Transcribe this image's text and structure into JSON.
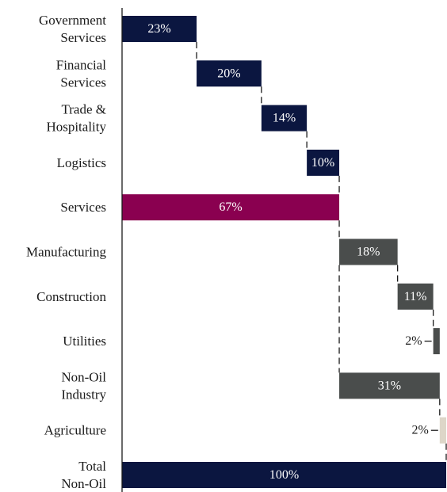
{
  "chart_data": {
    "type": "bar",
    "orientation": "horizontal-waterfall",
    "title": "",
    "xlabel": "",
    "ylabel": "",
    "xlim": [
      0,
      100
    ],
    "grid": false,
    "legend": "none",
    "bars": [
      {
        "label_lines": [
          "Government",
          "Services"
        ],
        "start": 0,
        "value": 23,
        "value_label": "23%",
        "color": "#0b1640",
        "text_color": "#ffffff",
        "label_position": "inside"
      },
      {
        "label_lines": [
          "Financial",
          "Services"
        ],
        "start": 23,
        "value": 20,
        "value_label": "20%",
        "color": "#0b1640",
        "text_color": "#ffffff",
        "label_position": "inside"
      },
      {
        "label_lines": [
          "Trade &",
          "Hospitality"
        ],
        "start": 43,
        "value": 14,
        "value_label": "14%",
        "color": "#0b1640",
        "text_color": "#ffffff",
        "label_position": "inside"
      },
      {
        "label_lines": [
          "Logistics"
        ],
        "start": 57,
        "value": 10,
        "value_label": "10%",
        "color": "#0b1640",
        "text_color": "#ffffff",
        "label_position": "inside"
      },
      {
        "label_lines": [
          "Services"
        ],
        "start": 0,
        "value": 67,
        "value_label": "67%",
        "color": "#8a0050",
        "text_color": "#ffffff",
        "label_position": "inside"
      },
      {
        "label_lines": [
          "Manufacturing"
        ],
        "start": 67,
        "value": 18,
        "value_label": "18%",
        "color": "#4a4d4c",
        "text_color": "#ffffff",
        "label_position": "inside"
      },
      {
        "label_lines": [
          "Construction"
        ],
        "start": 85,
        "value": 11,
        "value_label": "11%",
        "color": "#4a4d4c",
        "text_color": "#ffffff",
        "label_position": "inside"
      },
      {
        "label_lines": [
          "Utilities"
        ],
        "start": 96,
        "value": 2,
        "value_label": "2%",
        "color": "#4a4d4c",
        "text_color": "#1a1a1a",
        "label_position": "left"
      },
      {
        "label_lines": [
          "Non-Oil",
          "Industry"
        ],
        "start": 67,
        "value": 31,
        "value_label": "31%",
        "color": "#4a4d4c",
        "text_color": "#ffffff",
        "label_position": "inside"
      },
      {
        "label_lines": [
          "Agriculture"
        ],
        "start": 98,
        "value": 2,
        "value_label": "2%",
        "color": "#ddd6c8",
        "text_color": "#1a1a1a",
        "label_position": "left"
      },
      {
        "label_lines": [
          "Total",
          "Non-Oil"
        ],
        "start": 0,
        "value": 100,
        "value_label": "100%",
        "color": "#0b1640",
        "text_color": "#ffffff",
        "label_position": "inside"
      }
    ],
    "connectors": [
      {
        "at": 23,
        "from_bar": 0,
        "to_bar": 1
      },
      {
        "at": 43,
        "from_bar": 1,
        "to_bar": 2
      },
      {
        "at": 57,
        "from_bar": 2,
        "to_bar": 3
      },
      {
        "at": 67,
        "from_bar": 3,
        "to_bar": 4
      },
      {
        "at": 67,
        "from_bar": 4,
        "to_bar": 5
      },
      {
        "at": 85,
        "from_bar": 5,
        "to_bar": 6
      },
      {
        "at": 96,
        "from_bar": 6,
        "to_bar": 7
      },
      {
        "at": 67,
        "from_bar": 5,
        "to_bar": 8
      },
      {
        "at": 98,
        "from_bar": 8,
        "to_bar": 9
      },
      {
        "at": 100,
        "from_bar": 9,
        "to_bar": 10
      }
    ]
  }
}
